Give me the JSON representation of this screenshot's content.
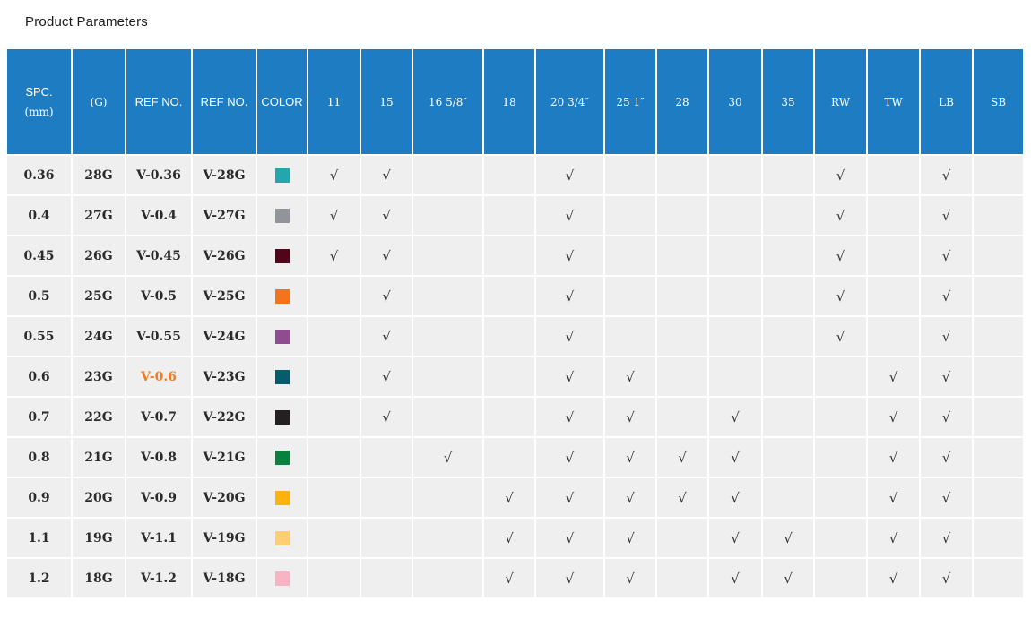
{
  "title": "Product Parameters",
  "colors": {
    "header_bg": "#1e7dc2",
    "header_text": "#ffffff",
    "row_bg": "#efefef",
    "grid": "#ffffff",
    "cell_text": "#2b2b2b",
    "check": "#333333",
    "ref_highlight": "#f47b20"
  },
  "table": {
    "check_glyph": "√",
    "info_headers": [
      {
        "id": "spc",
        "line1": "SPC.",
        "line2": "(mm)"
      },
      {
        "id": "gauge",
        "line1": "(G)",
        "line2": ""
      },
      {
        "id": "ref-no-1",
        "line1": "REF NO.",
        "line2": ""
      },
      {
        "id": "ref-no-2",
        "line1": "REF NO.",
        "line2": ""
      },
      {
        "id": "color",
        "line1": "COLOR",
        "line2": ""
      }
    ],
    "size_headers": [
      "11",
      "15",
      "16 5/8″",
      "18",
      "20 3/4″",
      "25 1″",
      "28",
      "30",
      "35",
      "RW",
      "TW",
      "LB",
      "SB"
    ],
    "rows": [
      {
        "spc": "0.36",
        "g": "28G",
        "ref1": "V-0.36",
        "ref2": "V-28G",
        "swatch": "#22a7ad",
        "ref1_highlight": false,
        "checks": [
          1,
          1,
          0,
          0,
          1,
          0,
          0,
          0,
          0,
          1,
          0,
          1,
          0
        ]
      },
      {
        "spc": "0.4",
        "g": "27G",
        "ref1": "V-0.4",
        "ref2": "V-27G",
        "swatch": "#929499",
        "ref1_highlight": false,
        "checks": [
          1,
          1,
          0,
          0,
          1,
          0,
          0,
          0,
          0,
          1,
          0,
          1,
          0
        ]
      },
      {
        "spc": "0.45",
        "g": "26G",
        "ref1": "V-0.45",
        "ref2": "V-26G",
        "swatch": "#52041b",
        "ref1_highlight": false,
        "checks": [
          1,
          1,
          0,
          0,
          1,
          0,
          0,
          0,
          0,
          1,
          0,
          1,
          0
        ]
      },
      {
        "spc": "0.5",
        "g": "25G",
        "ref1": "V-0.5",
        "ref2": "V-25G",
        "swatch": "#f3731f",
        "ref1_highlight": false,
        "checks": [
          0,
          1,
          0,
          0,
          1,
          0,
          0,
          0,
          0,
          1,
          0,
          1,
          0
        ]
      },
      {
        "spc": "0.55",
        "g": "24G",
        "ref1": "V-0.55",
        "ref2": "V-24G",
        "swatch": "#8d4d90",
        "ref1_highlight": false,
        "checks": [
          0,
          1,
          0,
          0,
          1,
          0,
          0,
          0,
          0,
          1,
          0,
          1,
          0
        ]
      },
      {
        "spc": "0.6",
        "g": "23G",
        "ref1": "V-0.6",
        "ref2": "V-23G",
        "swatch": "#045c6c",
        "ref1_highlight": true,
        "checks": [
          0,
          1,
          0,
          0,
          1,
          1,
          0,
          0,
          0,
          0,
          1,
          1,
          0
        ]
      },
      {
        "spc": "0.7",
        "g": "22G",
        "ref1": "V-0.7",
        "ref2": "V-22G",
        "swatch": "#241f20",
        "ref1_highlight": false,
        "checks": [
          0,
          1,
          0,
          0,
          1,
          1,
          0,
          1,
          0,
          0,
          1,
          1,
          0
        ]
      },
      {
        "spc": "0.8",
        "g": "21G",
        "ref1": "V-0.8",
        "ref2": "V-21G",
        "swatch": "#08813e",
        "ref1_highlight": false,
        "checks": [
          0,
          0,
          1,
          0,
          1,
          1,
          1,
          1,
          0,
          0,
          1,
          1,
          0
        ]
      },
      {
        "spc": "0.9",
        "g": "20G",
        "ref1": "V-0.9",
        "ref2": "V-20G",
        "swatch": "#fcb30d",
        "ref1_highlight": false,
        "checks": [
          0,
          0,
          0,
          1,
          1,
          1,
          1,
          1,
          0,
          0,
          1,
          1,
          0
        ]
      },
      {
        "spc": "1.1",
        "g": "19G",
        "ref1": "V-1.1",
        "ref2": "V-19G",
        "swatch": "#fece70",
        "ref1_highlight": false,
        "checks": [
          0,
          0,
          0,
          1,
          1,
          1,
          0,
          1,
          1,
          0,
          1,
          1,
          0
        ]
      },
      {
        "spc": "1.2",
        "g": "18G",
        "ref1": "V-1.2",
        "ref2": "V-18G",
        "swatch": "#f9b4c3",
        "ref1_highlight": false,
        "checks": [
          0,
          0,
          0,
          1,
          1,
          1,
          0,
          1,
          1,
          0,
          1,
          1,
          0
        ]
      }
    ]
  }
}
